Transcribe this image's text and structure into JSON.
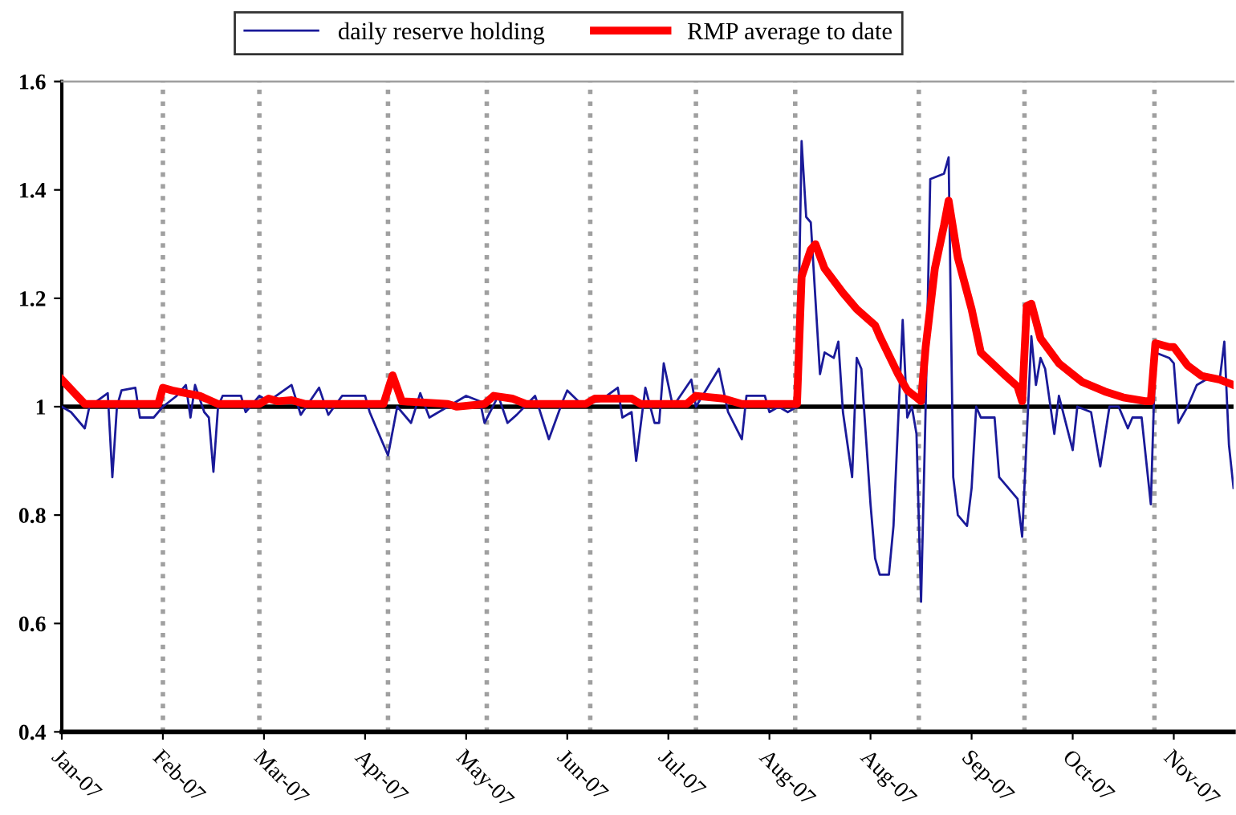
{
  "chart_data": {
    "type": "line",
    "categories": [
      "Jan-07",
      null,
      null,
      null,
      null,
      null,
      null,
      null,
      null,
      null,
      null,
      null,
      null,
      null,
      null,
      null,
      null,
      null,
      null,
      null,
      null,
      null,
      "Feb-07",
      null,
      null,
      null,
      null,
      null,
      null,
      null,
      null,
      null,
      null,
      null,
      null,
      null,
      null,
      null,
      null,
      null,
      null,
      null,
      null,
      null,
      "Mar-07",
      null,
      null,
      null,
      null,
      null,
      null,
      null,
      null,
      null,
      null,
      null,
      null,
      null,
      null,
      null,
      null,
      null,
      null,
      null,
      null,
      null,
      "Apr-07",
      null,
      null,
      null,
      null,
      null,
      null,
      null,
      null,
      null,
      null,
      null,
      null,
      null,
      null,
      null,
      null,
      null,
      null,
      null,
      null,
      null,
      "May-07",
      null,
      null,
      null,
      null,
      null,
      null,
      null,
      null,
      null,
      null,
      null,
      null,
      null,
      null,
      null,
      null,
      null,
      null,
      null,
      null,
      null,
      "Jun-07",
      null,
      null,
      null,
      null,
      null,
      null,
      null,
      null,
      null,
      null,
      null,
      null,
      null,
      null,
      null,
      null,
      null,
      null,
      null,
      null,
      null,
      "Jul-07",
      null,
      null,
      null,
      null,
      null,
      null,
      null,
      null,
      null,
      null,
      null,
      null,
      null,
      null,
      null,
      null,
      null,
      null,
      null,
      null,
      null,
      "Aug-07",
      null,
      null,
      null,
      null,
      null,
      null,
      null,
      null,
      null,
      null,
      null,
      null,
      null,
      null,
      null,
      null,
      null,
      null,
      null,
      null,
      null,
      "Aug-07",
      null,
      null,
      null,
      null,
      null,
      null,
      null,
      null,
      null,
      null,
      null,
      null,
      null,
      null,
      null,
      null,
      null,
      null,
      null,
      null,
      null,
      "Sep-07",
      null,
      null,
      null,
      null,
      null,
      null,
      null,
      null,
      null,
      null,
      null,
      null,
      null,
      null,
      null,
      null,
      null,
      null,
      null,
      null,
      null,
      "Oct-07",
      null,
      null,
      null,
      null,
      null,
      null,
      null,
      null,
      null,
      null,
      null,
      null,
      null,
      null,
      null,
      null,
      null,
      null,
      null,
      null,
      null,
      "Nov-07",
      null,
      null,
      null,
      null,
      null,
      null,
      null,
      null,
      null,
      null,
      null,
      null,
      null
    ],
    "ylim": [
      0.4,
      1.6
    ],
    "yticks": [
      0.4,
      0.6,
      0.8,
      1,
      1.2,
      1.4,
      1.6
    ],
    "grid": false,
    "legend": "top",
    "marker": "none",
    "line_style": "solid",
    "ref_lines": [
      {
        "axis": "y",
        "value": 1,
        "label": null,
        "color": "#000000",
        "line_style": "solid"
      }
    ],
    "series": [
      {
        "name": "daily reserve holding",
        "color": "#1a1a99",
        "values": [
          1.0,
          null,
          0.99,
          null,
          null,
          0.96,
          1.0,
          null,
          null,
          null,
          1.025,
          0.87,
          1.0,
          1.03,
          null,
          null,
          1.035,
          0.98,
          null,
          null,
          0.98,
          null,
          1.0,
          null,
          null,
          1.02,
          null,
          1.04,
          0.98,
          1.04,
          null,
          0.99,
          0.98,
          0.88,
          1.0,
          1.02,
          null,
          null,
          null,
          1.02,
          0.99,
          null,
          null,
          1.02,
          null,
          1.01,
          null,
          null,
          null,
          null,
          1.04,
          null,
          0.985,
          null,
          null,
          null,
          1.035,
          null,
          0.985,
          null,
          null,
          1.02,
          null,
          null,
          null,
          null,
          1.02,
          0.99,
          null,
          null,
          null,
          0.91,
          null,
          1.0,
          null,
          null,
          0.97,
          null,
          1.025,
          null,
          0.98,
          null,
          null,
          null,
          1.0,
          null,
          null,
          null,
          1.02,
          null,
          null,
          1.01,
          0.97,
          null,
          null,
          1.02,
          null,
          0.97,
          null,
          0.985,
          null,
          null,
          null,
          1.02,
          null,
          null,
          0.94,
          null,
          null,
          1.01,
          1.03,
          null,
          null,
          1.005,
          null,
          null,
          null,
          1.01,
          null,
          null,
          null,
          1.035,
          0.98,
          null,
          0.99,
          0.9,
          null,
          1.035,
          null,
          0.97,
          0.97,
          1.08,
          null,
          1.0,
          null,
          null,
          null,
          1.05,
          1.0,
          null,
          null,
          null,
          null,
          1.07,
          null,
          0.99,
          null,
          null,
          0.94,
          1.02,
          null,
          null,
          null,
          1.02,
          0.99,
          null,
          1.0,
          null,
          0.99,
          null,
          1.0,
          1.49,
          1.35,
          1.34,
          1.2,
          1.06,
          1.1,
          null,
          1.09,
          1.12,
          0.99,
          null,
          0.87,
          1.09,
          1.07,
          null,
          0.82,
          0.72,
          0.69,
          null,
          0.69,
          0.78,
          null,
          1.16,
          0.98,
          1.0,
          0.95,
          0.64,
          1.0,
          1.42,
          null,
          null,
          1.43,
          1.46,
          0.87,
          0.8,
          null,
          0.78,
          0.85,
          1.0,
          0.98,
          null,
          null,
          0.98,
          0.87,
          null,
          null,
          null,
          0.83,
          0.76,
          null,
          1.13,
          1.04,
          1.09,
          1.07,
          null,
          0.95,
          1.02,
          null,
          null,
          0.92,
          1.0,
          null,
          null,
          0.99,
          null,
          0.89,
          null,
          1.0,
          null,
          1.0,
          null,
          0.96,
          0.98,
          null,
          0.98,
          null,
          0.82,
          1.1,
          null,
          null,
          1.09,
          1.08,
          0.97,
          null,
          1.0,
          null,
          1.04,
          null,
          1.05,
          null,
          null,
          1.05,
          1.12,
          0.93,
          0.85
        ]
      },
      {
        "name": "RMP average to date",
        "color": "#ff0000",
        "values": [
          1.05,
          null,
          null,
          null,
          null,
          1.005,
          null,
          null,
          null,
          null,
          null,
          null,
          null,
          null,
          null,
          null,
          null,
          null,
          null,
          null,
          null,
          1.005,
          1.035,
          null,
          1.03,
          null,
          null,
          null,
          null,
          null,
          1.02,
          null,
          null,
          null,
          1.005,
          null,
          null,
          null,
          null,
          null,
          null,
          null,
          null,
          1.005,
          null,
          1.015,
          null,
          1.01,
          null,
          null,
          1.012,
          null,
          null,
          1.005,
          null,
          null,
          null,
          null,
          null,
          null,
          null,
          null,
          null,
          null,
          null,
          null,
          null,
          null,
          null,
          null,
          1.005,
          null,
          1.058,
          null,
          1.01,
          null,
          null,
          null,
          null,
          null,
          null,
          null,
          null,
          null,
          1.005,
          null,
          1.0,
          null,
          null,
          null,
          null,
          null,
          1.005,
          null,
          1.02,
          null,
          null,
          null,
          1.015,
          null,
          null,
          1.005,
          null,
          null,
          null,
          null,
          null,
          null,
          null,
          null,
          null,
          null,
          null,
          null,
          1.005,
          null,
          1.015,
          null,
          null,
          null,
          null,
          null,
          null,
          null,
          1.015,
          null,
          1.005,
          null,
          null,
          null,
          null,
          null,
          null,
          null,
          null,
          null,
          1.005,
          null,
          1.02,
          null,
          null,
          null,
          null,
          null,
          1.015,
          null,
          null,
          null,
          1.005,
          null,
          null,
          null,
          null,
          null,
          null,
          null,
          null,
          null,
          null,
          null,
          1.005,
          1.24,
          null,
          1.29,
          1.3,
          null,
          1.255,
          null,
          null,
          null,
          1.21,
          null,
          null,
          1.18,
          null,
          null,
          null,
          1.15,
          1.13,
          null,
          null,
          null,
          1.06,
          null,
          1.03,
          null,
          1.017,
          1.01,
          1.11,
          null,
          1.255,
          null,
          1.335,
          1.38,
          null,
          1.275,
          null,
          null,
          1.18,
          null,
          1.1,
          null,
          null,
          null,
          null,
          1.06,
          null,
          null,
          1.037,
          1.01,
          1.186,
          1.19,
          null,
          1.126,
          null,
          null,
          null,
          1.08,
          null,
          null,
          null,
          null,
          1.046,
          null,
          null,
          null,
          null,
          1.028,
          null,
          null,
          null,
          1.017,
          null,
          null,
          null,
          null,
          1.01,
          1.01,
          1.117,
          null,
          null,
          1.11,
          1.11,
          null,
          null,
          1.076,
          null,
          null,
          1.057,
          null,
          null,
          null,
          1.05,
          null,
          null,
          1.04
        ]
      }
    ]
  }
}
